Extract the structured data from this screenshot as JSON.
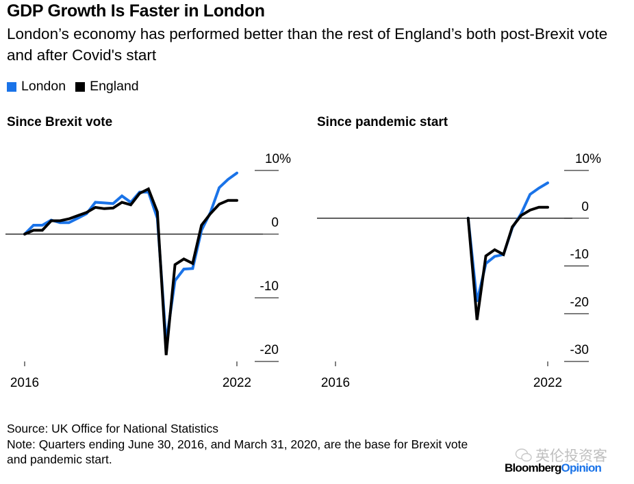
{
  "header": {
    "title": "GDP Growth Is Faster in London",
    "subtitle": "London’s economy has performed better than the rest of England’s both post-Brexit vote and after Covid's start"
  },
  "legend": [
    {
      "label": "London",
      "color": "#1a73e8"
    },
    {
      "label": "England",
      "color": "#000000"
    }
  ],
  "footer": {
    "source": "Source: UK Office for National Statistics",
    "note": "Note: Quarters ending June 30, 2016, and March 31, 2020, are the base for Brexit vote and pandemic start."
  },
  "watermark": {
    "text": "英伦投资客"
  },
  "brand": {
    "name": "Bloomberg",
    "suffix": "Opinion"
  },
  "chart_data": [
    {
      "type": "line",
      "title": "Since Brexit vote",
      "xlabel": "",
      "ylabel": "",
      "x_ticks": [
        "2016",
        "2022"
      ],
      "x_range": [
        2016.0,
        2022.0
      ],
      "y_ticks": [
        10,
        0,
        -10,
        -20
      ],
      "y_tick_labels": [
        "10%",
        "0",
        "-10",
        "-20"
      ],
      "ylim": [
        -20,
        10
      ],
      "zero_line": true,
      "legend_position": "top-left",
      "x": [
        2016.0,
        2016.25,
        2016.5,
        2016.75,
        2017.0,
        2017.25,
        2017.5,
        2017.75,
        2018.0,
        2018.25,
        2018.5,
        2018.75,
        2019.0,
        2019.25,
        2019.5,
        2019.75,
        2020.0,
        2020.25,
        2020.5,
        2020.75,
        2021.0,
        2021.25,
        2021.5,
        2021.75,
        2022.0
      ],
      "series": [
        {
          "name": "London",
          "color": "#1a73e8",
          "values": [
            0,
            1.4,
            1.4,
            2.2,
            1.8,
            1.8,
            2.5,
            3.2,
            5.0,
            4.9,
            4.8,
            6.0,
            5.0,
            6.6,
            6.6,
            2.5,
            -17.0,
            -7.3,
            -5.5,
            -5.4,
            0.6,
            3.4,
            7.3,
            8.6,
            9.6
          ]
        },
        {
          "name": "England",
          "color": "#000000",
          "values": [
            0,
            0.6,
            0.6,
            2.1,
            2.1,
            2.4,
            2.9,
            3.4,
            4.2,
            4.0,
            4.1,
            5.0,
            4.6,
            6.4,
            7.1,
            3.5,
            -19.0,
            -4.8,
            -3.9,
            -4.6,
            1.4,
            3.2,
            4.7,
            5.3,
            5.3
          ]
        }
      ]
    },
    {
      "type": "line",
      "title": "Since pandemic start",
      "xlabel": "",
      "ylabel": "",
      "x_ticks": [
        "2016",
        "2022"
      ],
      "x_range": [
        2016.0,
        2022.0
      ],
      "y_ticks": [
        10,
        0,
        -10,
        -20,
        -30
      ],
      "y_tick_labels": [
        "10%",
        "0",
        "-10",
        "-20",
        "-30"
      ],
      "ylim": [
        -30,
        10
      ],
      "zero_line": true,
      "legend_position": "top-left",
      "x": [
        2019.75,
        2020.0,
        2020.25,
        2020.5,
        2020.75,
        2021.0,
        2021.25,
        2021.5,
        2021.75,
        2022.0
      ],
      "series": [
        {
          "name": "London",
          "color": "#1a73e8",
          "values": [
            0,
            -17.5,
            -9.5,
            -8.0,
            -7.6,
            -2.0,
            1.0,
            5.0,
            6.3,
            7.4
          ]
        },
        {
          "name": "England",
          "color": "#000000",
          "values": [
            0,
            -21.3,
            -7.9,
            -6.6,
            -7.6,
            -1.8,
            0.6,
            1.7,
            2.3,
            2.3
          ]
        }
      ]
    }
  ]
}
